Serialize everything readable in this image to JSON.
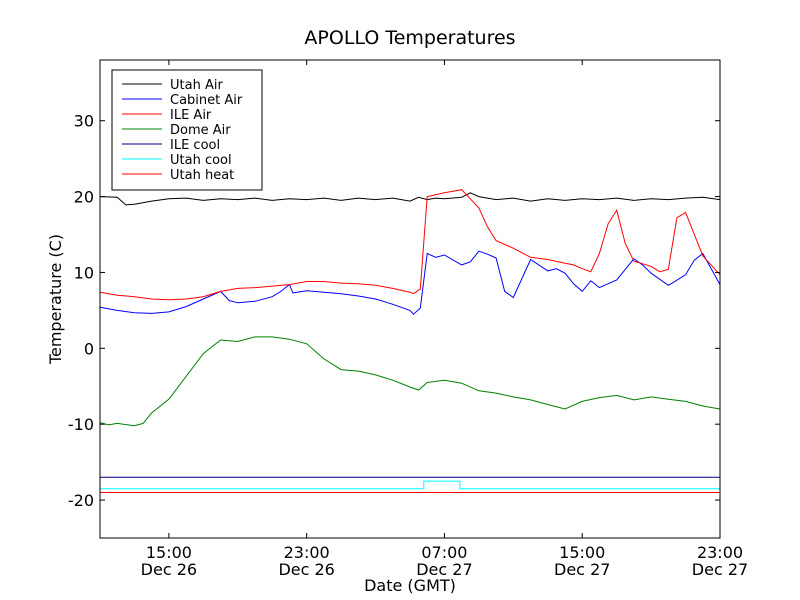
{
  "chart_data": {
    "type": "line",
    "title": "APOLLO Temperatures",
    "xlabel": "Date (GMT)",
    "ylabel": "Temperature (C)",
    "x_unit": "hours since Dec 26 11:00 GMT",
    "xlim": [
      0,
      36
    ],
    "ylim": [
      -25,
      38
    ],
    "yticks": [
      -20,
      -10,
      0,
      10,
      20,
      30
    ],
    "xticks": [
      {
        "x": 4,
        "time": "15:00",
        "date": "Dec 26"
      },
      {
        "x": 12,
        "time": "23:00",
        "date": "Dec 26"
      },
      {
        "x": 20,
        "time": "07:00",
        "date": "Dec 27"
      },
      {
        "x": 28,
        "time": "15:00",
        "date": "Dec 27"
      },
      {
        "x": 36,
        "time": "23:00",
        "date": "Dec 27"
      }
    ],
    "legend_position": "top-left",
    "series": [
      {
        "name": "Utah Air",
        "color": "#000000",
        "x": [
          0,
          1,
          1.5,
          2,
          3,
          4,
          5,
          6,
          7,
          8,
          9,
          10,
          11,
          12,
          13,
          14,
          15,
          16,
          17,
          18,
          18.5,
          19,
          19.5,
          20,
          21,
          21.5,
          22,
          23,
          24,
          25,
          26,
          27,
          28,
          29,
          30,
          31,
          32,
          33,
          34,
          35,
          36
        ],
        "y": [
          20,
          19.9,
          18.9,
          19.0,
          19.4,
          19.7,
          19.8,
          19.5,
          19.7,
          19.6,
          19.8,
          19.5,
          19.7,
          19.6,
          19.8,
          19.5,
          19.8,
          19.6,
          19.8,
          19.4,
          19.9,
          19.6,
          19.8,
          19.7,
          19.9,
          20.5,
          20.0,
          19.6,
          19.8,
          19.4,
          19.7,
          19.5,
          19.7,
          19.6,
          19.8,
          19.5,
          19.7,
          19.6,
          19.8,
          19.9,
          19.6
        ]
      },
      {
        "name": "Cabinet Air",
        "color": "#0000ff",
        "x": [
          0,
          1,
          2,
          3,
          4,
          5,
          6,
          7,
          7.5,
          8,
          9,
          10,
          10.5,
          11,
          11.2,
          12,
          13,
          14,
          15,
          16,
          17,
          18,
          18.2,
          18.6,
          19,
          19.5,
          20,
          21,
          21.5,
          22,
          22.5,
          23,
          23.5,
          24,
          25,
          26,
          26.5,
          27,
          27.5,
          28,
          28.5,
          29,
          30,
          31,
          31.5,
          32,
          33,
          33.3,
          34,
          34.5,
          35,
          36
        ],
        "y": [
          5.4,
          5.0,
          4.7,
          4.6,
          4.8,
          5.5,
          6.5,
          7.5,
          6.3,
          6.0,
          6.2,
          6.8,
          7.5,
          8.4,
          7.3,
          7.6,
          7.4,
          7.2,
          6.9,
          6.5,
          5.8,
          5.0,
          4.5,
          5.3,
          12.5,
          12.0,
          12.3,
          11.0,
          11.4,
          12.8,
          12.4,
          11.9,
          7.5,
          6.7,
          11.7,
          10.2,
          10.5,
          9.9,
          8.5,
          7.5,
          8.9,
          8.0,
          9.0,
          11.8,
          11.0,
          9.9,
          8.3,
          8.7,
          9.7,
          11.6,
          12.5,
          8.4
        ]
      },
      {
        "name": "ILE Air",
        "color": "#ff0000",
        "x": [
          0,
          1,
          2,
          3,
          4,
          5,
          6,
          7,
          8,
          9,
          10,
          11,
          12,
          13,
          14,
          15,
          16,
          17,
          18,
          18.2,
          18.6,
          19,
          20,
          21,
          22,
          22.5,
          23,
          24,
          25,
          26,
          27,
          27.5,
          28,
          28.5,
          29,
          29.5,
          30,
          30.5,
          31,
          32,
          32.5,
          33,
          33.5,
          34,
          35,
          36
        ],
        "y": [
          7.4,
          7.0,
          6.8,
          6.5,
          6.4,
          6.5,
          6.8,
          7.5,
          7.9,
          8.0,
          8.2,
          8.4,
          8.8,
          8.8,
          8.6,
          8.5,
          8.3,
          7.9,
          7.4,
          7.2,
          7.8,
          20.0,
          20.5,
          20.9,
          18.5,
          16.0,
          14.2,
          13.2,
          12.0,
          11.7,
          11.2,
          11.0,
          10.5,
          10.1,
          12.5,
          16.4,
          18.2,
          13.8,
          11.5,
          10.8,
          10.1,
          10.4,
          17.2,
          17.9,
          12.2,
          9.7
        ]
      },
      {
        "name": "Dome Air",
        "color": "#008000",
        "x": [
          0,
          0.5,
          1,
          2,
          2.5,
          3,
          4,
          5,
          6,
          7,
          8,
          9,
          10,
          11,
          12,
          13,
          14,
          15,
          16,
          17,
          18,
          18.5,
          19,
          20,
          21,
          22,
          23,
          24,
          25,
          26,
          27,
          28,
          29,
          30,
          31,
          32,
          33,
          34,
          35,
          36
        ],
        "y": [
          -9.8,
          -10.1,
          -9.9,
          -10.2,
          -9.9,
          -8.5,
          -6.7,
          -3.7,
          -0.7,
          1.1,
          0.9,
          1.5,
          1.5,
          1.2,
          0.6,
          -1.4,
          -2.8,
          -3.0,
          -3.5,
          -4.2,
          -5.1,
          -5.5,
          -4.5,
          -4.2,
          -4.6,
          -5.6,
          -5.9,
          -6.4,
          -6.8,
          -7.4,
          -8.0,
          -7.0,
          -6.5,
          -6.2,
          -6.8,
          -6.4,
          -6.7,
          -7.0,
          -7.6,
          -8.0
        ]
      },
      {
        "name": "ILE cool",
        "color": "#000080",
        "x": [
          0,
          36
        ],
        "y": [
          -17.0,
          -17.0
        ]
      },
      {
        "name": "Utah cool",
        "color": "#00ffff",
        "x": [
          0,
          18.8,
          18.8,
          20.9,
          20.9,
          36
        ],
        "y": [
          -18.5,
          -18.5,
          -17.5,
          -17.5,
          -18.5,
          -18.5
        ]
      },
      {
        "name": "Utah heat",
        "color": "#ff0000",
        "x": [
          0,
          36
        ],
        "y": [
          -19.0,
          -19.0
        ]
      }
    ]
  }
}
